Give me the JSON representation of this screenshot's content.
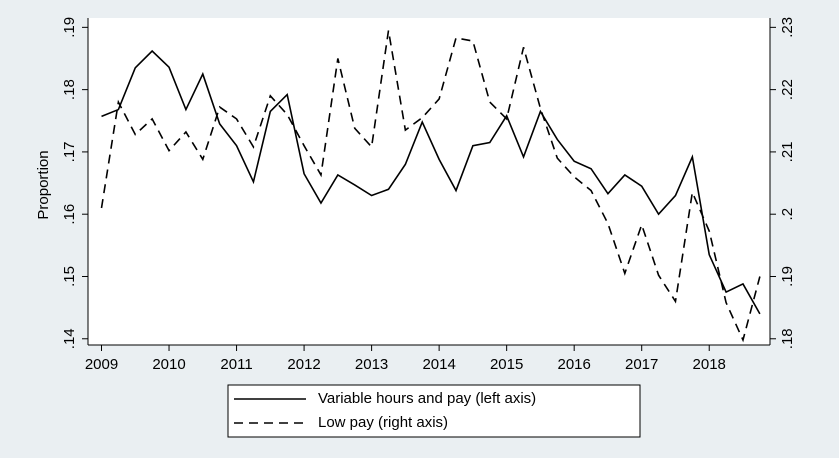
{
  "chart_data": {
    "type": "line",
    "y_label": "Proportion",
    "x": [
      2009,
      2009.25,
      2009.5,
      2009.75,
      2010,
      2010.25,
      2010.5,
      2010.75,
      2011,
      2011.25,
      2011.5,
      2011.75,
      2012,
      2012.25,
      2012.5,
      2012.75,
      2013,
      2013.25,
      2013.5,
      2013.75,
      2014,
      2014.25,
      2014.5,
      2014.75,
      2015,
      2015.25,
      2015.5,
      2015.75,
      2016,
      2016.25,
      2016.5,
      2016.75,
      2017,
      2017.25,
      2017.5,
      2017.75,
      2018,
      2018.25,
      2018.5,
      2018.75
    ],
    "series": [
      {
        "name": "Variable hours and pay (left axis)",
        "color": "#000000",
        "linestyle": "solid",
        "axis": "y",
        "values": [
          0.1757,
          0.1768,
          0.1835,
          0.1862,
          0.1836,
          0.1768,
          0.1825,
          0.1745,
          0.171,
          0.1652,
          0.1765,
          0.1792,
          0.1665,
          0.1618,
          0.1663,
          0.1647,
          0.163,
          0.164,
          0.168,
          0.1748,
          0.1688,
          0.1638,
          0.171,
          0.1715,
          0.1758,
          0.1692,
          0.1765,
          0.172,
          0.1685,
          0.1673,
          0.1633,
          0.1663,
          0.1645,
          0.16,
          0.163,
          0.1692,
          0.1535,
          0.1475,
          0.1488,
          0.144
        ]
      },
      {
        "name": "Low pay (right axis)",
        "color": "#000000",
        "linestyle": "dashed",
        "axis": "y2",
        "values": [
          0.201,
          0.218,
          0.2128,
          0.2153,
          0.2102,
          0.2132,
          0.2088,
          0.2172,
          0.2153,
          0.2108,
          0.219,
          0.216,
          0.211,
          0.2063,
          0.225,
          0.2138,
          0.2108,
          0.2295,
          0.2135,
          0.2155,
          0.2185,
          0.2283,
          0.2278,
          0.218,
          0.2153,
          0.2268,
          0.217,
          0.209,
          0.206,
          0.2038,
          0.1985,
          0.1905,
          0.1983,
          0.1902,
          0.186,
          0.2035,
          0.1973,
          0.1858,
          0.1798,
          0.19
        ]
      }
    ],
    "xlim": [
      2008.8,
      2018.9
    ],
    "xticks": [
      2009,
      2010,
      2011,
      2012,
      2013,
      2014,
      2015,
      2016,
      2017,
      2018
    ],
    "ylim": [
      0.139,
      0.1915
    ],
    "yticks": [
      {
        "value": 0.14,
        "label": ".14"
      },
      {
        "value": 0.15,
        "label": ".15"
      },
      {
        "value": 0.16,
        "label": ".16"
      },
      {
        "value": 0.17,
        "label": ".17"
      },
      {
        "value": 0.18,
        "label": ".18"
      },
      {
        "value": 0.19,
        "label": ".19"
      }
    ],
    "y2lim": [
      0.179,
      0.2315
    ],
    "y2ticks": [
      {
        "value": 0.18,
        "label": ".18"
      },
      {
        "value": 0.19,
        "label": ".19"
      },
      {
        "value": 0.2,
        "label": ".2"
      },
      {
        "value": 0.21,
        "label": ".21"
      },
      {
        "value": 0.22,
        "label": ".22"
      },
      {
        "value": 0.23,
        "label": ".23"
      }
    ],
    "grid": false,
    "legend": "bottom"
  }
}
